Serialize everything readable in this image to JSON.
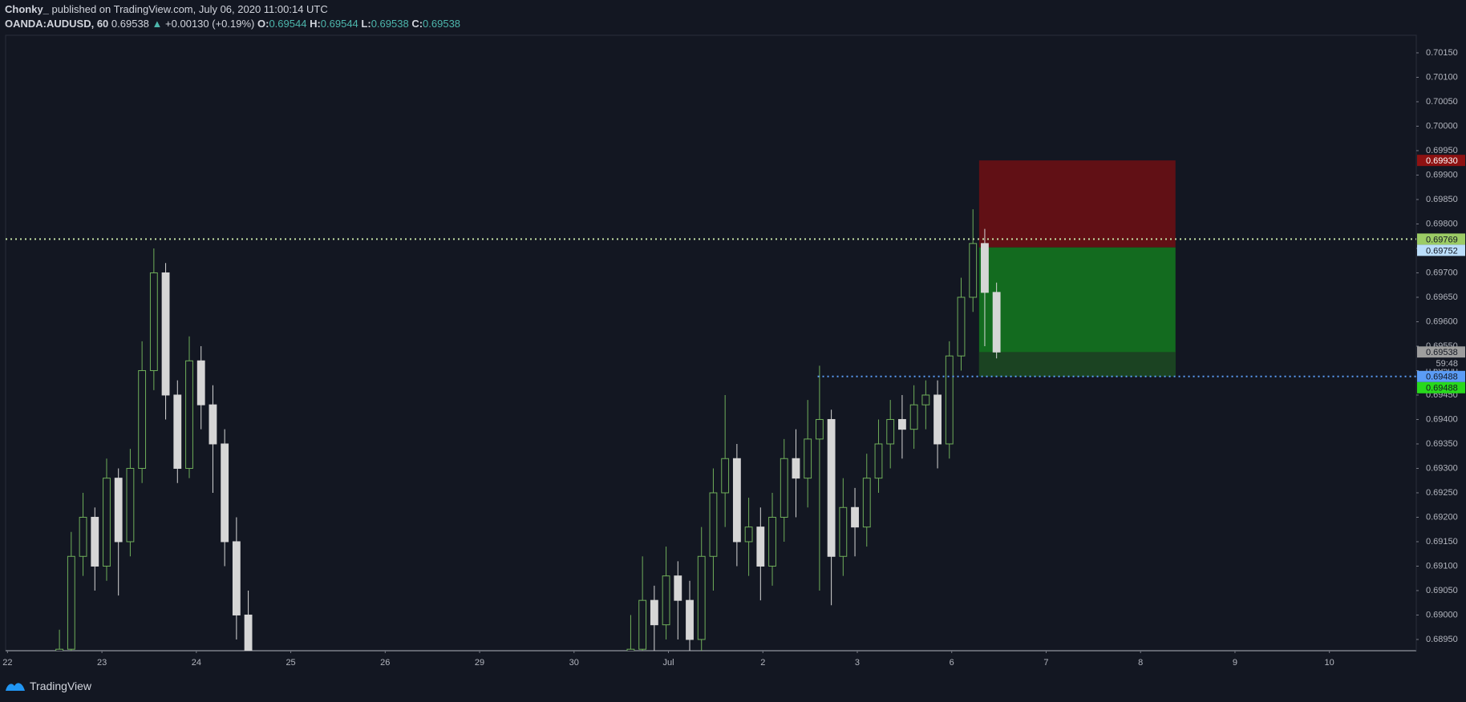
{
  "header": {
    "author": "Chonky_",
    "published": "published on TradingView.com, July 06, 2020 11:00:14 UTC",
    "symbol": "OANDA:AUDUSD, 60",
    "last": "0.69538",
    "change_arrow": "▲",
    "change": "+0.00130 (+0.19%)",
    "o_label": "O:",
    "o": "0.69544",
    "h_label": "H:",
    "h": "0.69544",
    "l_label": "L:",
    "l": "0.69538",
    "c_label": "C:",
    "c": "0.69538"
  },
  "footer": {
    "brand": "TradingView"
  },
  "chart_data": {
    "type": "candlestick",
    "up_color": "#6fae5a",
    "down_color": "#d6d6d6",
    "x": [
      0.55,
      0.675,
      0.8,
      0.925,
      1.05,
      1.175,
      1.3,
      1.425,
      1.55,
      1.675,
      1.8,
      1.925,
      2.05,
      2.175,
      2.3,
      2.425,
      2.55,
      6.6,
      6.725,
      6.85,
      6.975,
      7.1,
      7.225,
      7.35,
      7.475,
      7.6,
      7.725,
      7.85,
      7.975,
      8.1,
      8.225,
      8.35,
      8.475,
      8.6,
      8.725,
      8.85,
      8.975,
      9.1,
      9.225,
      9.35,
      9.475,
      9.6,
      9.725,
      9.85,
      9.975,
      10.1,
      10.225,
      10.35,
      10.475
    ],
    "open": [
      0.6886,
      0.6893,
      0.6912,
      0.692,
      0.691,
      0.6928,
      0.6915,
      0.693,
      0.695,
      0.697,
      0.6945,
      0.693,
      0.6952,
      0.6943,
      0.6935,
      0.6915,
      0.69,
      0.6888,
      0.6893,
      0.6903,
      0.6898,
      0.6908,
      0.6903,
      0.6895,
      0.6912,
      0.6925,
      0.6932,
      0.6915,
      0.6918,
      0.691,
      0.692,
      0.6932,
      0.6928,
      0.6936,
      0.694,
      0.6912,
      0.6922,
      0.6918,
      0.6928,
      0.6935,
      0.694,
      0.6938,
      0.6943,
      0.6945,
      0.6935,
      0.6953,
      0.6965,
      0.6976,
      0.6966
    ],
    "high": [
      0.6897,
      0.6917,
      0.6925,
      0.6922,
      0.6932,
      0.693,
      0.6934,
      0.6956,
      0.6975,
      0.6972,
      0.6948,
      0.6957,
      0.6955,
      0.6947,
      0.6938,
      0.692,
      0.6905,
      0.69,
      0.6912,
      0.6906,
      0.6914,
      0.6911,
      0.6907,
      0.6918,
      0.693,
      0.6945,
      0.6935,
      0.6924,
      0.6922,
      0.6925,
      0.6936,
      0.6938,
      0.6944,
      0.6951,
      0.6942,
      0.6928,
      0.6926,
      0.6933,
      0.694,
      0.6944,
      0.6945,
      0.6947,
      0.6948,
      0.6948,
      0.6956,
      0.6969,
      0.6983,
      0.6979,
      0.6968
    ],
    "low": [
      0.6884,
      0.689,
      0.6908,
      0.6905,
      0.6907,
      0.6904,
      0.6912,
      0.6927,
      0.6946,
      0.694,
      0.6927,
      0.6928,
      0.6938,
      0.6925,
      0.691,
      0.6895,
      0.6884,
      0.6885,
      0.689,
      0.689,
      0.6895,
      0.6895,
      0.6886,
      0.6892,
      0.6905,
      0.6918,
      0.691,
      0.6908,
      0.6903,
      0.6906,
      0.6915,
      0.692,
      0.6922,
      0.6905,
      0.6902,
      0.6908,
      0.6912,
      0.6914,
      0.6925,
      0.693,
      0.6932,
      0.6934,
      0.6938,
      0.693,
      0.6932,
      0.695,
      0.6962,
      0.6955,
      0.69525
    ],
    "close": [
      0.6893,
      0.6912,
      0.692,
      0.691,
      0.6928,
      0.6915,
      0.693,
      0.695,
      0.697,
      0.6945,
      0.693,
      0.6952,
      0.6943,
      0.6935,
      0.6915,
      0.69,
      0.6888,
      0.6893,
      0.6903,
      0.6898,
      0.6908,
      0.6903,
      0.6895,
      0.6912,
      0.6925,
      0.6932,
      0.6915,
      0.6918,
      0.691,
      0.692,
      0.6932,
      0.6928,
      0.6936,
      0.694,
      0.6912,
      0.6922,
      0.6918,
      0.6928,
      0.6935,
      0.694,
      0.6938,
      0.6943,
      0.6945,
      0.6935,
      0.6953,
      0.6965,
      0.6976,
      0.6966,
      0.69538
    ],
    "xlim": [
      -0.02,
      14.92
    ],
    "xticks": [
      {
        "value": 0,
        "label": "22"
      },
      {
        "value": 1,
        "label": "23"
      },
      {
        "value": 2,
        "label": "24"
      },
      {
        "value": 3,
        "label": "25"
      },
      {
        "value": 4,
        "label": "26"
      },
      {
        "value": 5,
        "label": "29"
      },
      {
        "value": 6,
        "label": "30"
      },
      {
        "value": 7,
        "label": "Jul"
      },
      {
        "value": 8,
        "label": "2"
      },
      {
        "value": 9,
        "label": "3"
      },
      {
        "value": 10,
        "label": "6"
      },
      {
        "value": 11,
        "label": "7"
      },
      {
        "value": 12,
        "label": "8"
      },
      {
        "value": 13,
        "label": "9"
      },
      {
        "value": 14,
        "label": "10"
      }
    ],
    "ylim": [
      0.68927,
      0.70186
    ],
    "yticks": [
      {
        "value": 0.7015,
        "label": "0.70150"
      },
      {
        "value": 0.701,
        "label": "0.70100"
      },
      {
        "value": 0.7005,
        "label": "0.70050"
      },
      {
        "value": 0.7,
        "label": "0.70000"
      },
      {
        "value": 0.6995,
        "label": "0.69950"
      },
      {
        "value": 0.699,
        "label": "0.69900"
      },
      {
        "value": 0.6985,
        "label": "0.69850"
      },
      {
        "value": 0.698,
        "label": "0.69800"
      },
      {
        "value": 0.6975,
        "label": "0.69750"
      },
      {
        "value": 0.697,
        "label": "0.69700"
      },
      {
        "value": 0.6965,
        "label": "0.69650"
      },
      {
        "value": 0.696,
        "label": "0.69600"
      },
      {
        "value": 0.6955,
        "label": "0.69550"
      },
      {
        "value": 0.695,
        "label": "0.69500"
      },
      {
        "value": 0.6945,
        "label": "0.69450"
      },
      {
        "value": 0.694,
        "label": "0.69400"
      },
      {
        "value": 0.6935,
        "label": "0.69350"
      },
      {
        "value": 0.693,
        "label": "0.69300"
      },
      {
        "value": 0.6925,
        "label": "0.69250"
      },
      {
        "value": 0.692,
        "label": "0.69200"
      },
      {
        "value": 0.6915,
        "label": "0.69150"
      },
      {
        "value": 0.691,
        "label": "0.69100"
      },
      {
        "value": 0.6905,
        "label": "0.69050"
      },
      {
        "value": 0.69,
        "label": "0.69000"
      },
      {
        "value": 0.6895,
        "label": "0.68950"
      }
    ],
    "position": {
      "x_start": 10.29,
      "x_end": 12.37,
      "entry": 0.69752,
      "stop": 0.6993,
      "target": 0.69488,
      "current": 0.69538,
      "stop_color": "#611015",
      "target_color": "#136b1f",
      "filled_color": "#1b4322"
    },
    "level_lines": [
      {
        "value": 0.69769,
        "color": "#c5e1a5"
      },
      {
        "value": 0.69488,
        "color": "#5b9cf6",
        "x_start": 8.58
      }
    ],
    "price_labels": [
      {
        "value": 0.6993,
        "label": "0.69930",
        "color": "#8e1212",
        "text_color": "#ffffff"
      },
      {
        "value": 0.69769,
        "label": "0.69769",
        "color": "#9ccc65",
        "text_color": "#131722"
      },
      {
        "value": 0.69752,
        "label": "0.69752",
        "color": "#bbdefb",
        "text_color": "#131722"
      },
      {
        "value": 0.69538,
        "label": "0.69538",
        "color": "#9e9e9e",
        "text_color": "#131722"
      },
      {
        "value": 0.69488,
        "label": "0.69488",
        "color": "#5b9cf6",
        "text_color": "#131722"
      },
      {
        "value": 0.69488,
        "label": "0.69488",
        "color": "#28d91c",
        "text_color": "#131722"
      }
    ],
    "countdown": "59:48"
  }
}
